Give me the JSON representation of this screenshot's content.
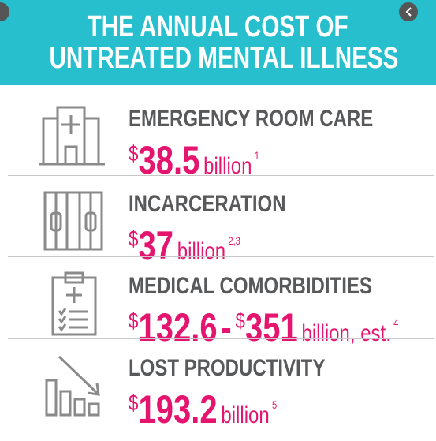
{
  "header": {
    "title": [
      "THE ANNUAL COST OF",
      "UNTREATED MENTAL ILLNESS"
    ]
  },
  "items": [
    {
      "label": "EMERGENCY ROOM CARE",
      "values": [
        {
          "currency": "$",
          "amount": "38.5"
        }
      ],
      "unit": "billion",
      "note": "1"
    },
    {
      "label": "INCARCERATION",
      "values": [
        {
          "currency": "$",
          "amount": "37"
        }
      ],
      "unit": "billion",
      "note": "2,3"
    },
    {
      "label": "MEDICAL COMORBIDITIES",
      "values": [
        {
          "currency": "$",
          "amount": "132.6"
        },
        {
          "currency": "$",
          "amount": "351"
        }
      ],
      "separator": "-",
      "unit": "billion, est.",
      "note": "4"
    },
    {
      "label": "LOST PRODUCTIVITY",
      "values": [
        {
          "currency": "$",
          "amount": "193.2"
        }
      ],
      "unit": "billion",
      "note": "5"
    }
  ]
}
